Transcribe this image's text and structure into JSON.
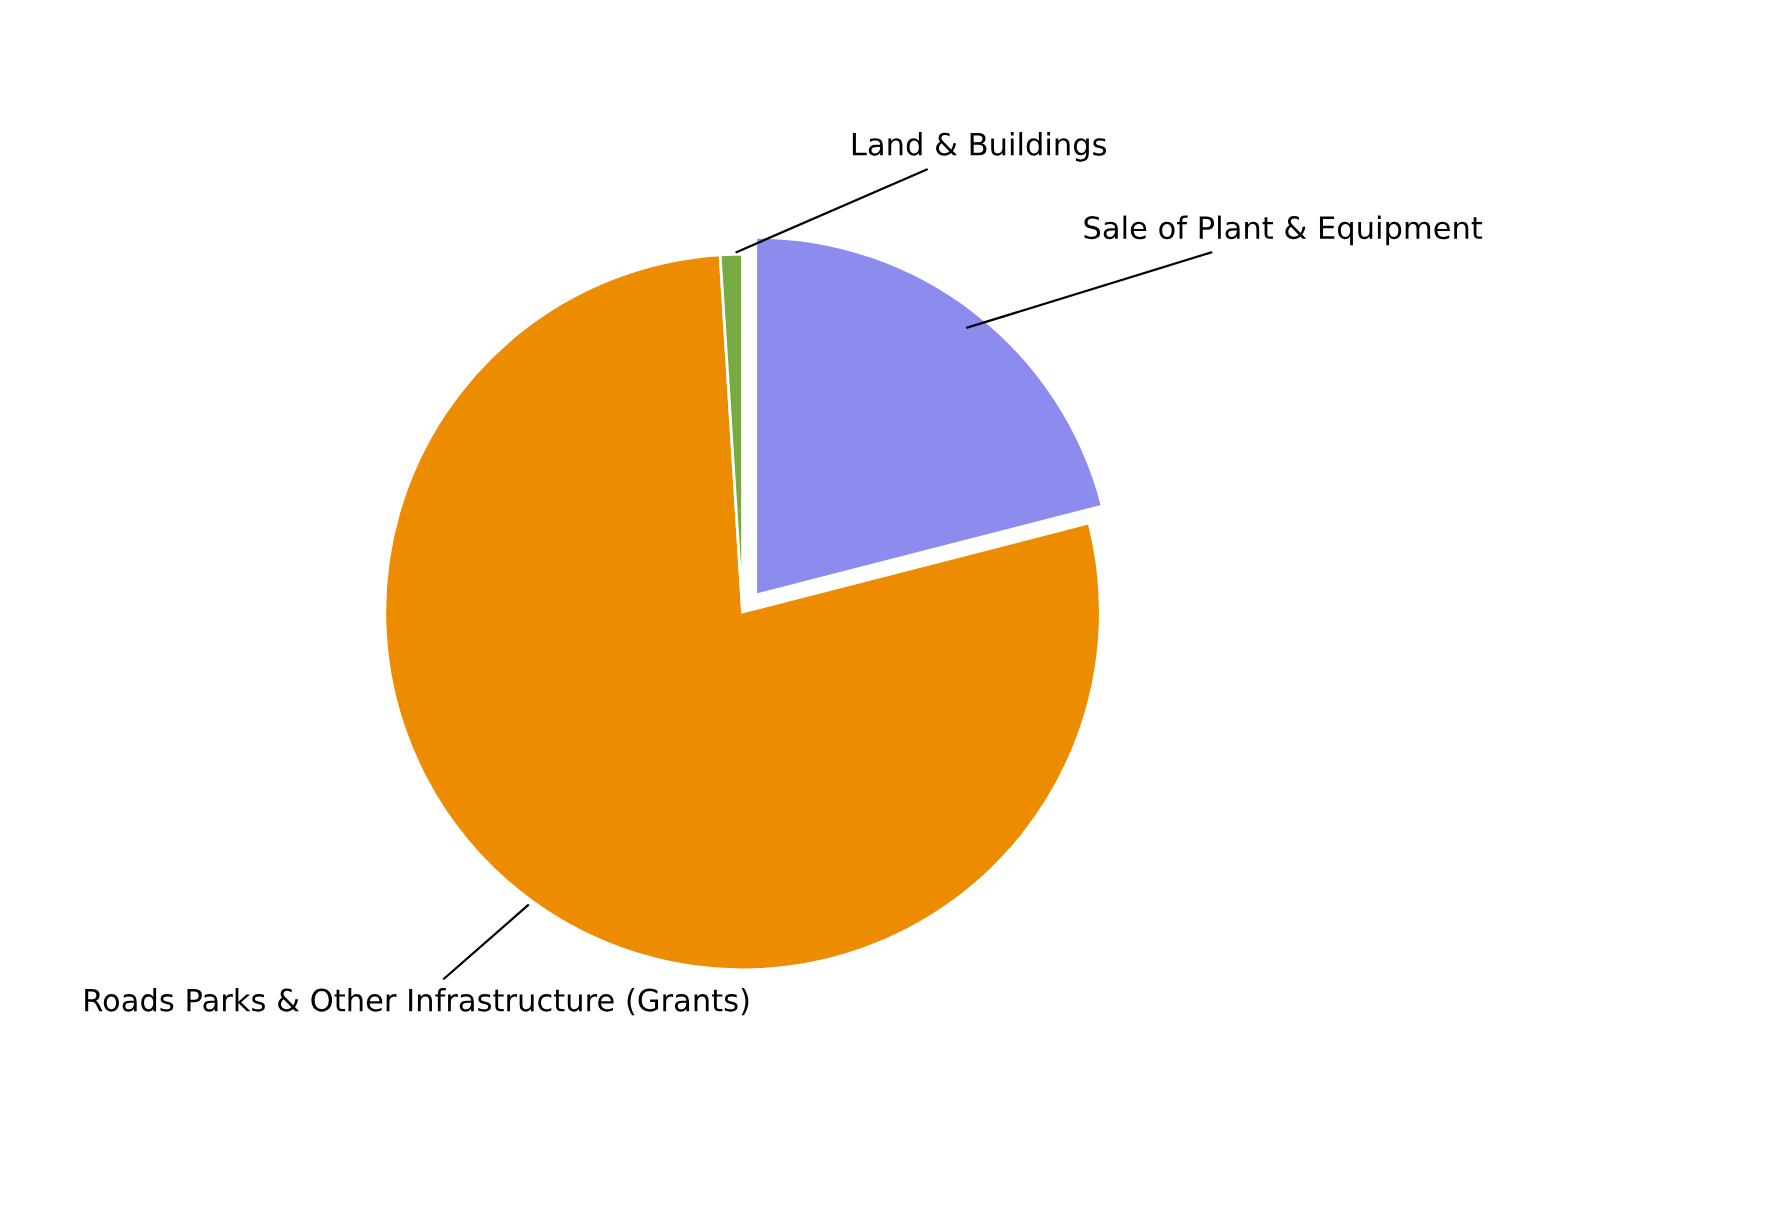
{
  "chart_data": {
    "type": "pie",
    "categories": [
      "Sale of Plant & Equipment",
      "Roads Parks & Other Infrastructure (Grants)",
      "Land & Buildings"
    ],
    "values": [
      21,
      78,
      1
    ],
    "colors": [
      "#8c8cee",
      "#ee8c00",
      "#77aa44"
    ]
  }
}
